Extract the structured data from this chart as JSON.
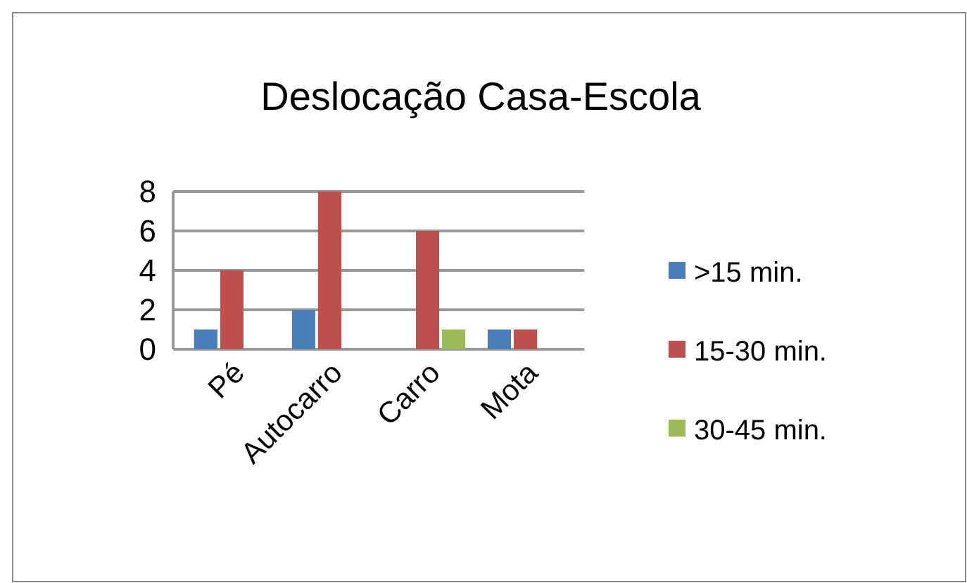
{
  "chart_data": {
    "type": "bar",
    "title": "Deslocação Casa-Escola",
    "categories": [
      "Pé",
      "Autocarro",
      "Carro",
      "Mota"
    ],
    "series": [
      {
        "name": ">15 min.",
        "color": "#4a7ebb",
        "values": [
          1,
          2,
          null,
          1
        ]
      },
      {
        "name": "15-30 min.",
        "color": "#c0504d",
        "values": [
          4,
          8,
          6,
          1
        ]
      },
      {
        "name": "30-45 min.",
        "color": "#9bbb59",
        "values": [
          null,
          null,
          1,
          null
        ]
      }
    ],
    "ylim": [
      0,
      8
    ],
    "yticks": [
      0,
      2,
      4,
      6,
      8
    ],
    "grid": "y",
    "legend": "right"
  }
}
